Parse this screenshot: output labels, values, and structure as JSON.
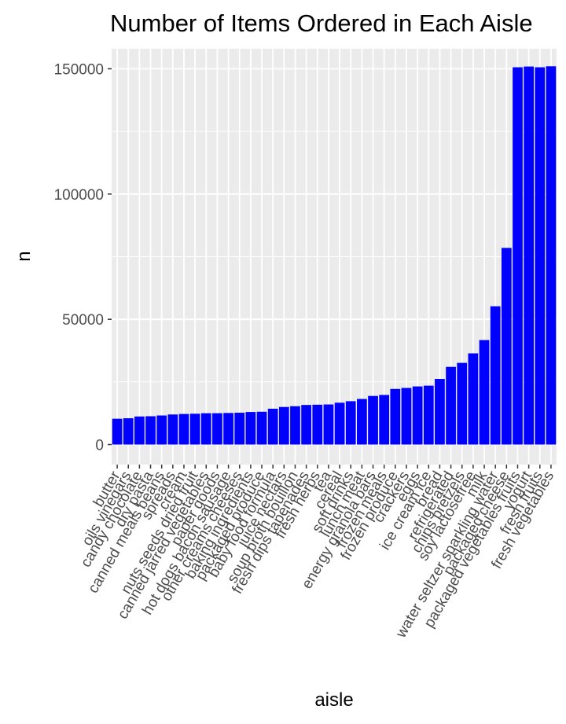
{
  "chart_data": {
    "type": "bar",
    "title": "Number of Items Ordered in Each Aisle",
    "xlabel": "aisle",
    "ylabel": "n",
    "ylim": [
      -8000,
      158000
    ],
    "yticks": [
      0,
      50000,
      100000,
      150000
    ],
    "ytick_labels": [
      "0",
      "50000",
      "100000",
      "150000"
    ],
    "grid": true,
    "bar_color": "#0000ff",
    "panel_color": "#ebebeb",
    "grid_color": "#ffffff",
    "categories": [
      "butter",
      "oils vinegars",
      "candy chocolate",
      "dry pasta",
      "canned meals beans",
      "spreads",
      "cream",
      "nuts seeds dried fruit",
      "canned jarred vegetables",
      "paper goods",
      "hot dogs bacon sausage",
      "other creams cheeses",
      "baking ingredients",
      "packaged produce",
      "baby food formula",
      "juice nectars",
      "soup broth bouillon",
      "fresh dips tapenades",
      "fresh herbs",
      "tea",
      "cereal",
      "soft drinks",
      "lunch meat",
      "energy granola bars",
      "frozen meals",
      "frozen produce",
      "crackers",
      "eggs",
      "ice cream ice",
      "bread",
      "refrigerated",
      "chips pretzels",
      "soy lactosefree",
      "milk",
      "water seltzer sparkling water",
      "packaged cheese",
      "packaged vegetables fruits",
      "yogurt",
      "fresh fruits",
      "fresh vegetables"
    ],
    "values": [
      10300,
      10500,
      11200,
      11300,
      11600,
      12000,
      12200,
      12300,
      12500,
      12500,
      12600,
      12700,
      13000,
      13100,
      14300,
      15000,
      15300,
      15800,
      15900,
      16000,
      16700,
      17300,
      18200,
      19400,
      19800,
      22200,
      22600,
      23200,
      23500,
      26200,
      31000,
      32600,
      36400,
      41700,
      55200,
      78500,
      150600,
      150900,
      150600,
      151000
    ]
  }
}
